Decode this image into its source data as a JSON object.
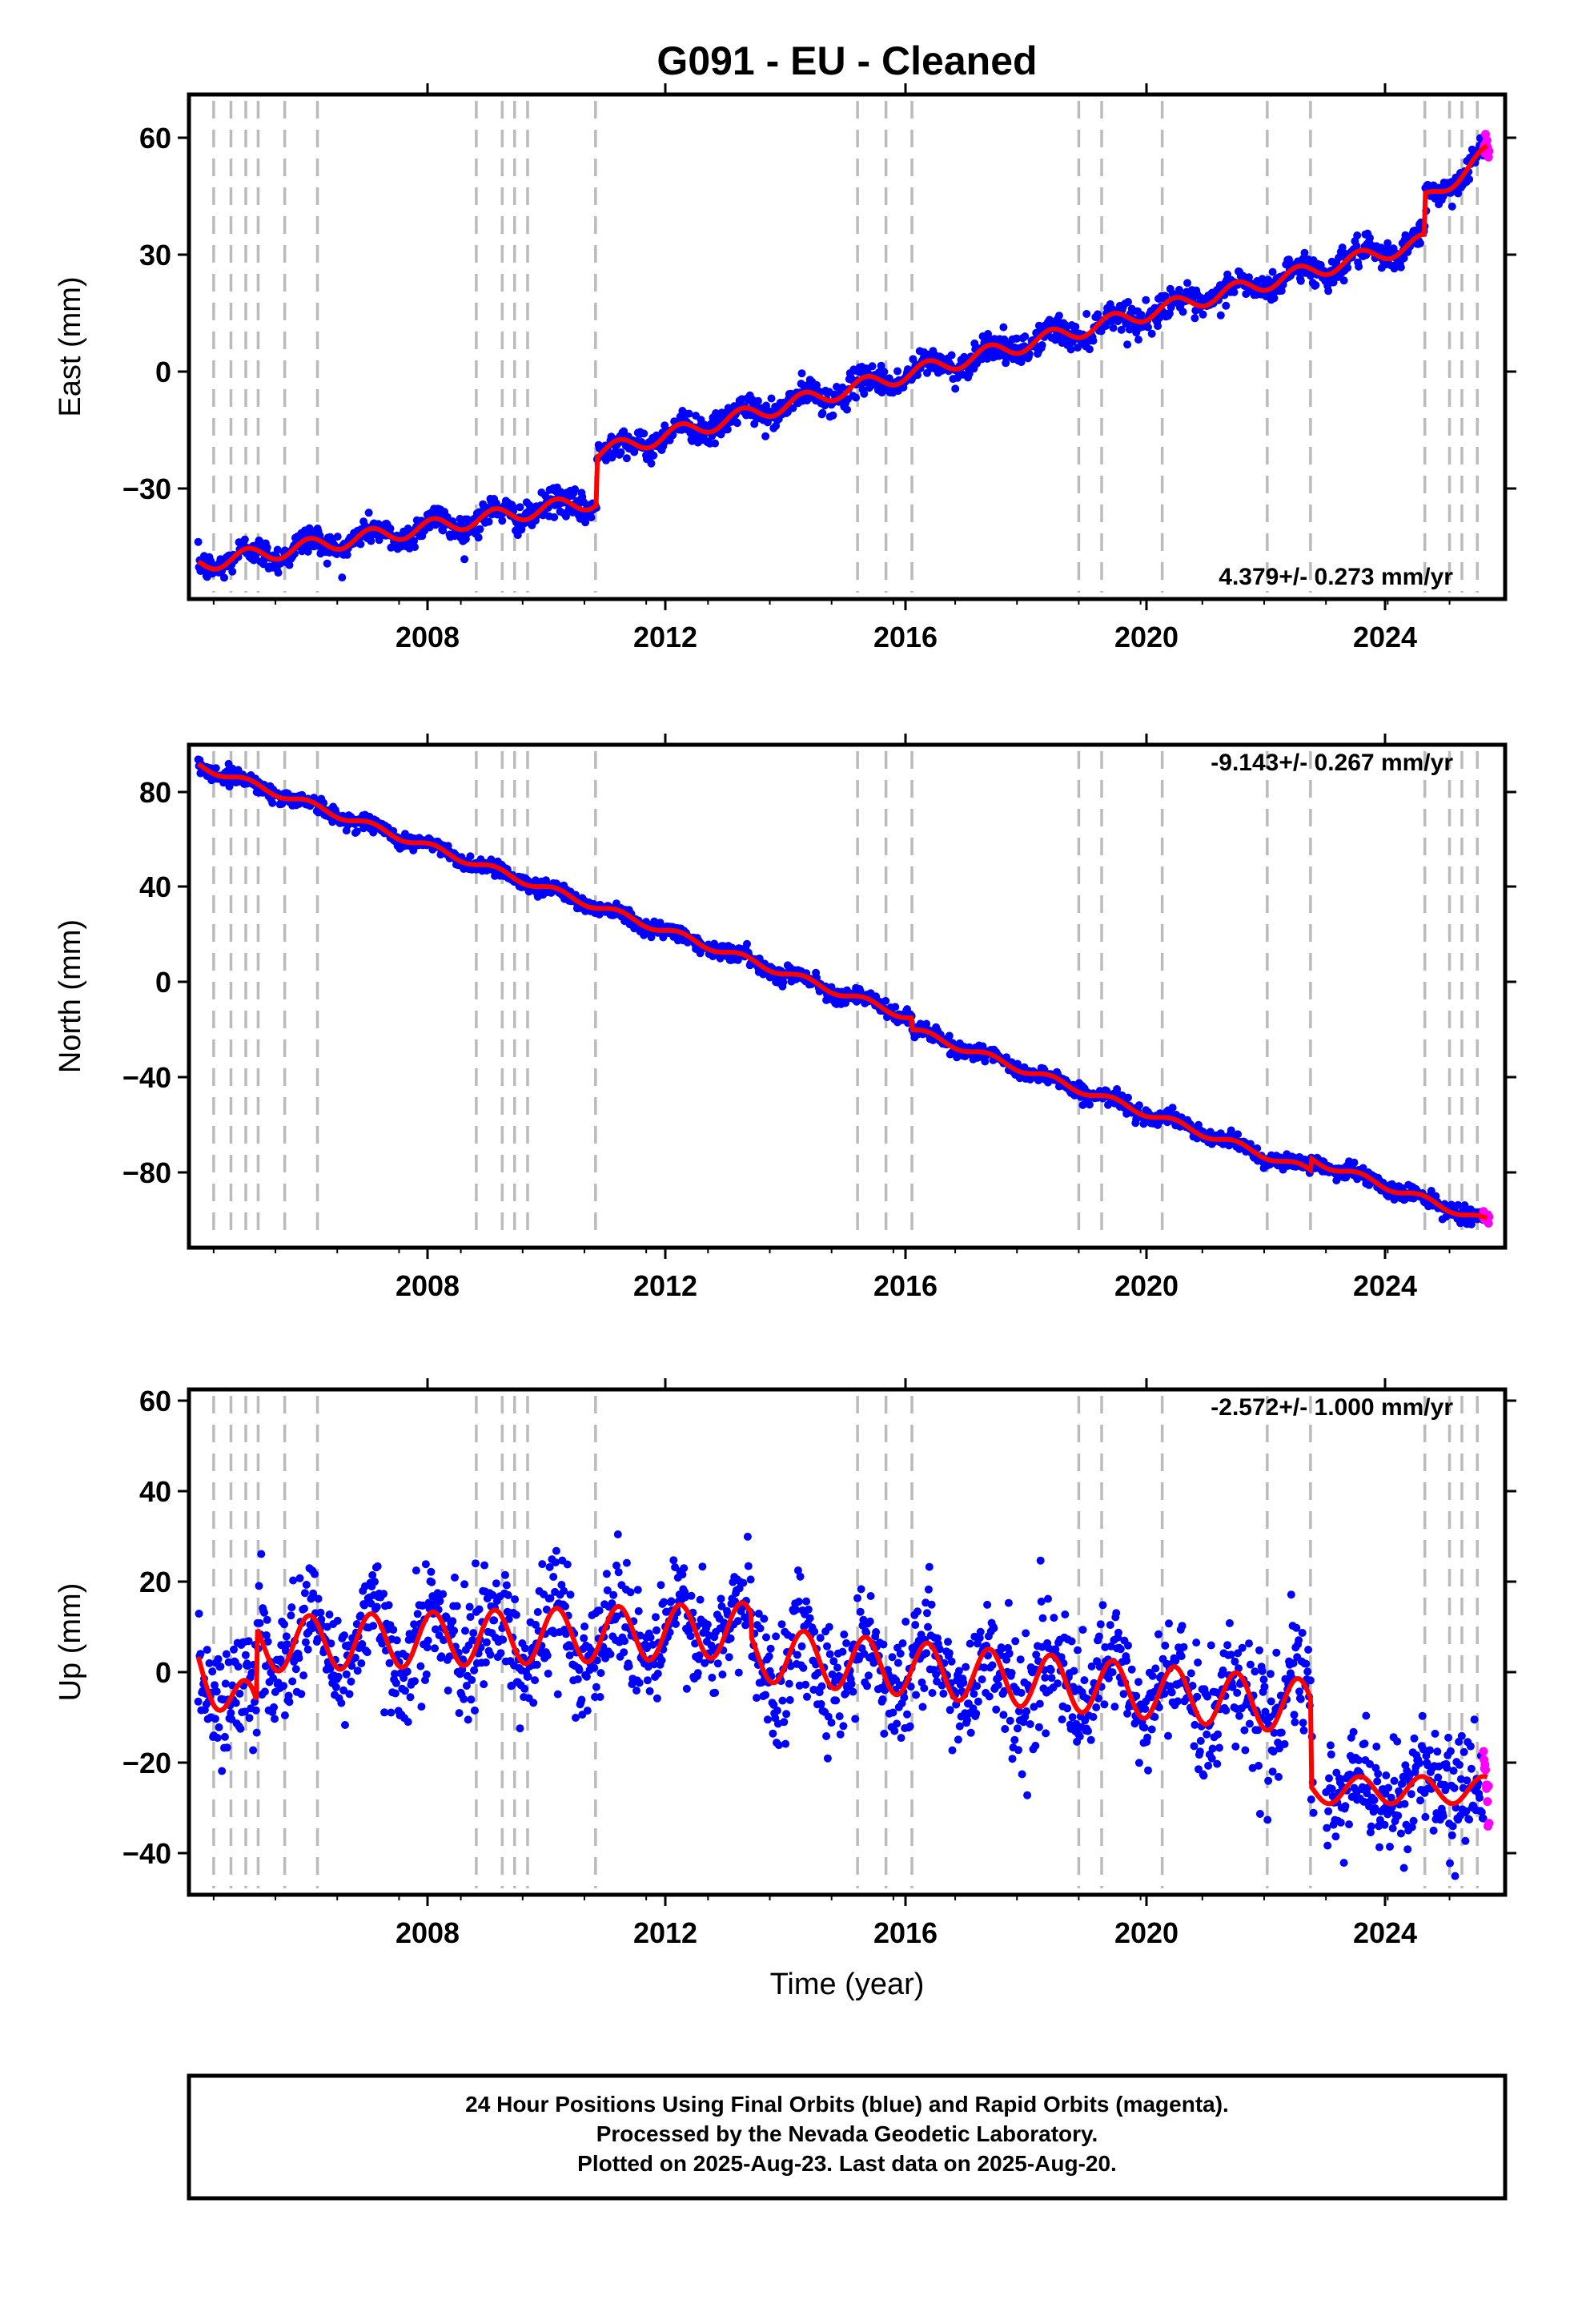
{
  "title": "G091  - EU - Cleaned",
  "xlabel": "Time (year)",
  "colors": {
    "final_orbits": "#0000ff",
    "rapid_orbits": "#ff00ff",
    "model": "#ff0000",
    "steps": "#bbbbbb"
  },
  "x_ticks": [
    "2008",
    "2012",
    "2016",
    "2020",
    "2024"
  ],
  "chart_data": [
    {
      "type": "scatter",
      "component": "east",
      "ylabel": "East (mm)",
      "rate": "4.379+/- 0.273 mm/yr",
      "ylim": [
        -57,
        71
      ],
      "yticks": [
        "60",
        "30",
        "0",
        "−30"
      ],
      "x_range": [
        2004.6,
        2025.9
      ]
    },
    {
      "type": "scatter",
      "component": "north",
      "ylabel": "North (mm)",
      "rate": "-9.143+/- 0.267 mm/yr",
      "ylim": [
        -110,
        100
      ],
      "yticks": [
        "80",
        "40",
        "0",
        "−40",
        "−80"
      ],
      "x_range": [
        2004.6,
        2025.9
      ]
    },
    {
      "type": "scatter",
      "component": "up",
      "ylabel": "Up (mm)",
      "rate": "-2.572+/- 1.000 mm/yr",
      "ylim": [
        -49,
        62
      ],
      "yticks": [
        "60",
        "40",
        "20",
        "0",
        "−20",
        "−40"
      ],
      "x_range": [
        2004.6,
        2025.9
      ]
    }
  ],
  "step_epochs": [
    2005.0,
    2005.28,
    2005.52,
    2005.72,
    2006.15,
    2006.68,
    2009.25,
    2009.67,
    2009.87,
    2010.08,
    2011.18,
    2015.42,
    2015.88,
    2016.3,
    2019.0,
    2019.37,
    2020.35,
    2022.05,
    2022.75,
    2024.6,
    2025.0,
    2025.2,
    2025.45
  ],
  "caption": {
    "line1": "24 Hour Positions Using Final Orbits (blue) and Rapid Orbits (magenta).",
    "line2": "Processed by the Nevada Geodetic Laboratory.",
    "line3": "Plotted on 2025-Aug-23. Last data on 2025-Aug-20."
  }
}
